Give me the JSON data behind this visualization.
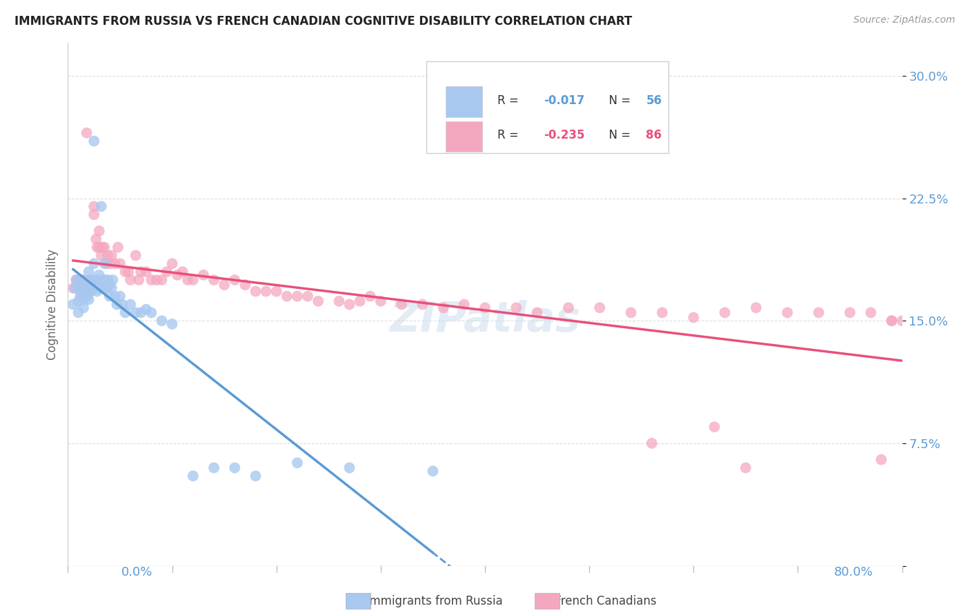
{
  "title": "IMMIGRANTS FROM RUSSIA VS FRENCH CANADIAN COGNITIVE DISABILITY CORRELATION CHART",
  "source": "Source: ZipAtlas.com",
  "ylabel": "Cognitive Disability",
  "yticks": [
    0.0,
    0.075,
    0.15,
    0.225,
    0.3
  ],
  "ytick_labels": [
    "",
    "7.5%",
    "15.0%",
    "22.5%",
    "30.0%"
  ],
  "xlim": [
    0.0,
    0.8
  ],
  "ylim": [
    0.0,
    0.32
  ],
  "color_russia": "#A8C8F0",
  "color_french": "#F4A8C0",
  "color_russia_line": "#5B9BD5",
  "color_french_line": "#E8507A",
  "color_axis_labels": "#5B9BD5",
  "watermark": "ZIPatlas",
  "russia_x": [
    0.005,
    0.007,
    0.008,
    0.01,
    0.01,
    0.01,
    0.012,
    0.013,
    0.015,
    0.015,
    0.015,
    0.018,
    0.018,
    0.02,
    0.02,
    0.02,
    0.02,
    0.022,
    0.022,
    0.025,
    0.025,
    0.025,
    0.027,
    0.028,
    0.028,
    0.03,
    0.03,
    0.032,
    0.033,
    0.035,
    0.035,
    0.037,
    0.038,
    0.04,
    0.04,
    0.042,
    0.043,
    0.045,
    0.047,
    0.05,
    0.052,
    0.055,
    0.06,
    0.065,
    0.07,
    0.075,
    0.08,
    0.09,
    0.1,
    0.12,
    0.14,
    0.16,
    0.18,
    0.22,
    0.27,
    0.35
  ],
  "russia_y": [
    0.16,
    0.17,
    0.175,
    0.155,
    0.162,
    0.17,
    0.165,
    0.175,
    0.158,
    0.163,
    0.17,
    0.165,
    0.17,
    0.163,
    0.168,
    0.175,
    0.18,
    0.168,
    0.175,
    0.26,
    0.175,
    0.185,
    0.173,
    0.168,
    0.175,
    0.17,
    0.178,
    0.22,
    0.17,
    0.175,
    0.185,
    0.17,
    0.175,
    0.165,
    0.172,
    0.17,
    0.175,
    0.165,
    0.16,
    0.165,
    0.16,
    0.155,
    0.16,
    0.155,
    0.155,
    0.157,
    0.155,
    0.15,
    0.148,
    0.055,
    0.06,
    0.06,
    0.055,
    0.063,
    0.06,
    0.058
  ],
  "french_x": [
    0.005,
    0.008,
    0.01,
    0.012,
    0.013,
    0.015,
    0.017,
    0.018,
    0.02,
    0.02,
    0.022,
    0.023,
    0.025,
    0.025,
    0.027,
    0.028,
    0.03,
    0.03,
    0.032,
    0.033,
    0.035,
    0.037,
    0.038,
    0.04,
    0.042,
    0.045,
    0.048,
    0.05,
    0.055,
    0.058,
    0.06,
    0.065,
    0.068,
    0.07,
    0.075,
    0.08,
    0.085,
    0.09,
    0.095,
    0.1,
    0.105,
    0.11,
    0.115,
    0.12,
    0.13,
    0.14,
    0.15,
    0.16,
    0.17,
    0.18,
    0.19,
    0.2,
    0.21,
    0.22,
    0.23,
    0.24,
    0.26,
    0.27,
    0.28,
    0.29,
    0.3,
    0.32,
    0.34,
    0.36,
    0.38,
    0.4,
    0.43,
    0.45,
    0.48,
    0.51,
    0.54,
    0.57,
    0.6,
    0.63,
    0.66,
    0.69,
    0.72,
    0.75,
    0.77,
    0.79,
    0.56,
    0.62,
    0.65,
    0.79,
    0.78,
    0.8
  ],
  "french_y": [
    0.17,
    0.175,
    0.175,
    0.168,
    0.172,
    0.175,
    0.17,
    0.265,
    0.172,
    0.168,
    0.175,
    0.17,
    0.215,
    0.22,
    0.2,
    0.195,
    0.205,
    0.195,
    0.19,
    0.195,
    0.195,
    0.185,
    0.19,
    0.185,
    0.19,
    0.185,
    0.195,
    0.185,
    0.18,
    0.18,
    0.175,
    0.19,
    0.175,
    0.18,
    0.18,
    0.175,
    0.175,
    0.175,
    0.18,
    0.185,
    0.178,
    0.18,
    0.175,
    0.175,
    0.178,
    0.175,
    0.172,
    0.175,
    0.172,
    0.168,
    0.168,
    0.168,
    0.165,
    0.165,
    0.165,
    0.162,
    0.162,
    0.16,
    0.162,
    0.165,
    0.162,
    0.16,
    0.16,
    0.158,
    0.16,
    0.158,
    0.158,
    0.155,
    0.158,
    0.158,
    0.155,
    0.155,
    0.152,
    0.155,
    0.158,
    0.155,
    0.155,
    0.155,
    0.155,
    0.15,
    0.075,
    0.085,
    0.06,
    0.15,
    0.065,
    0.15
  ]
}
